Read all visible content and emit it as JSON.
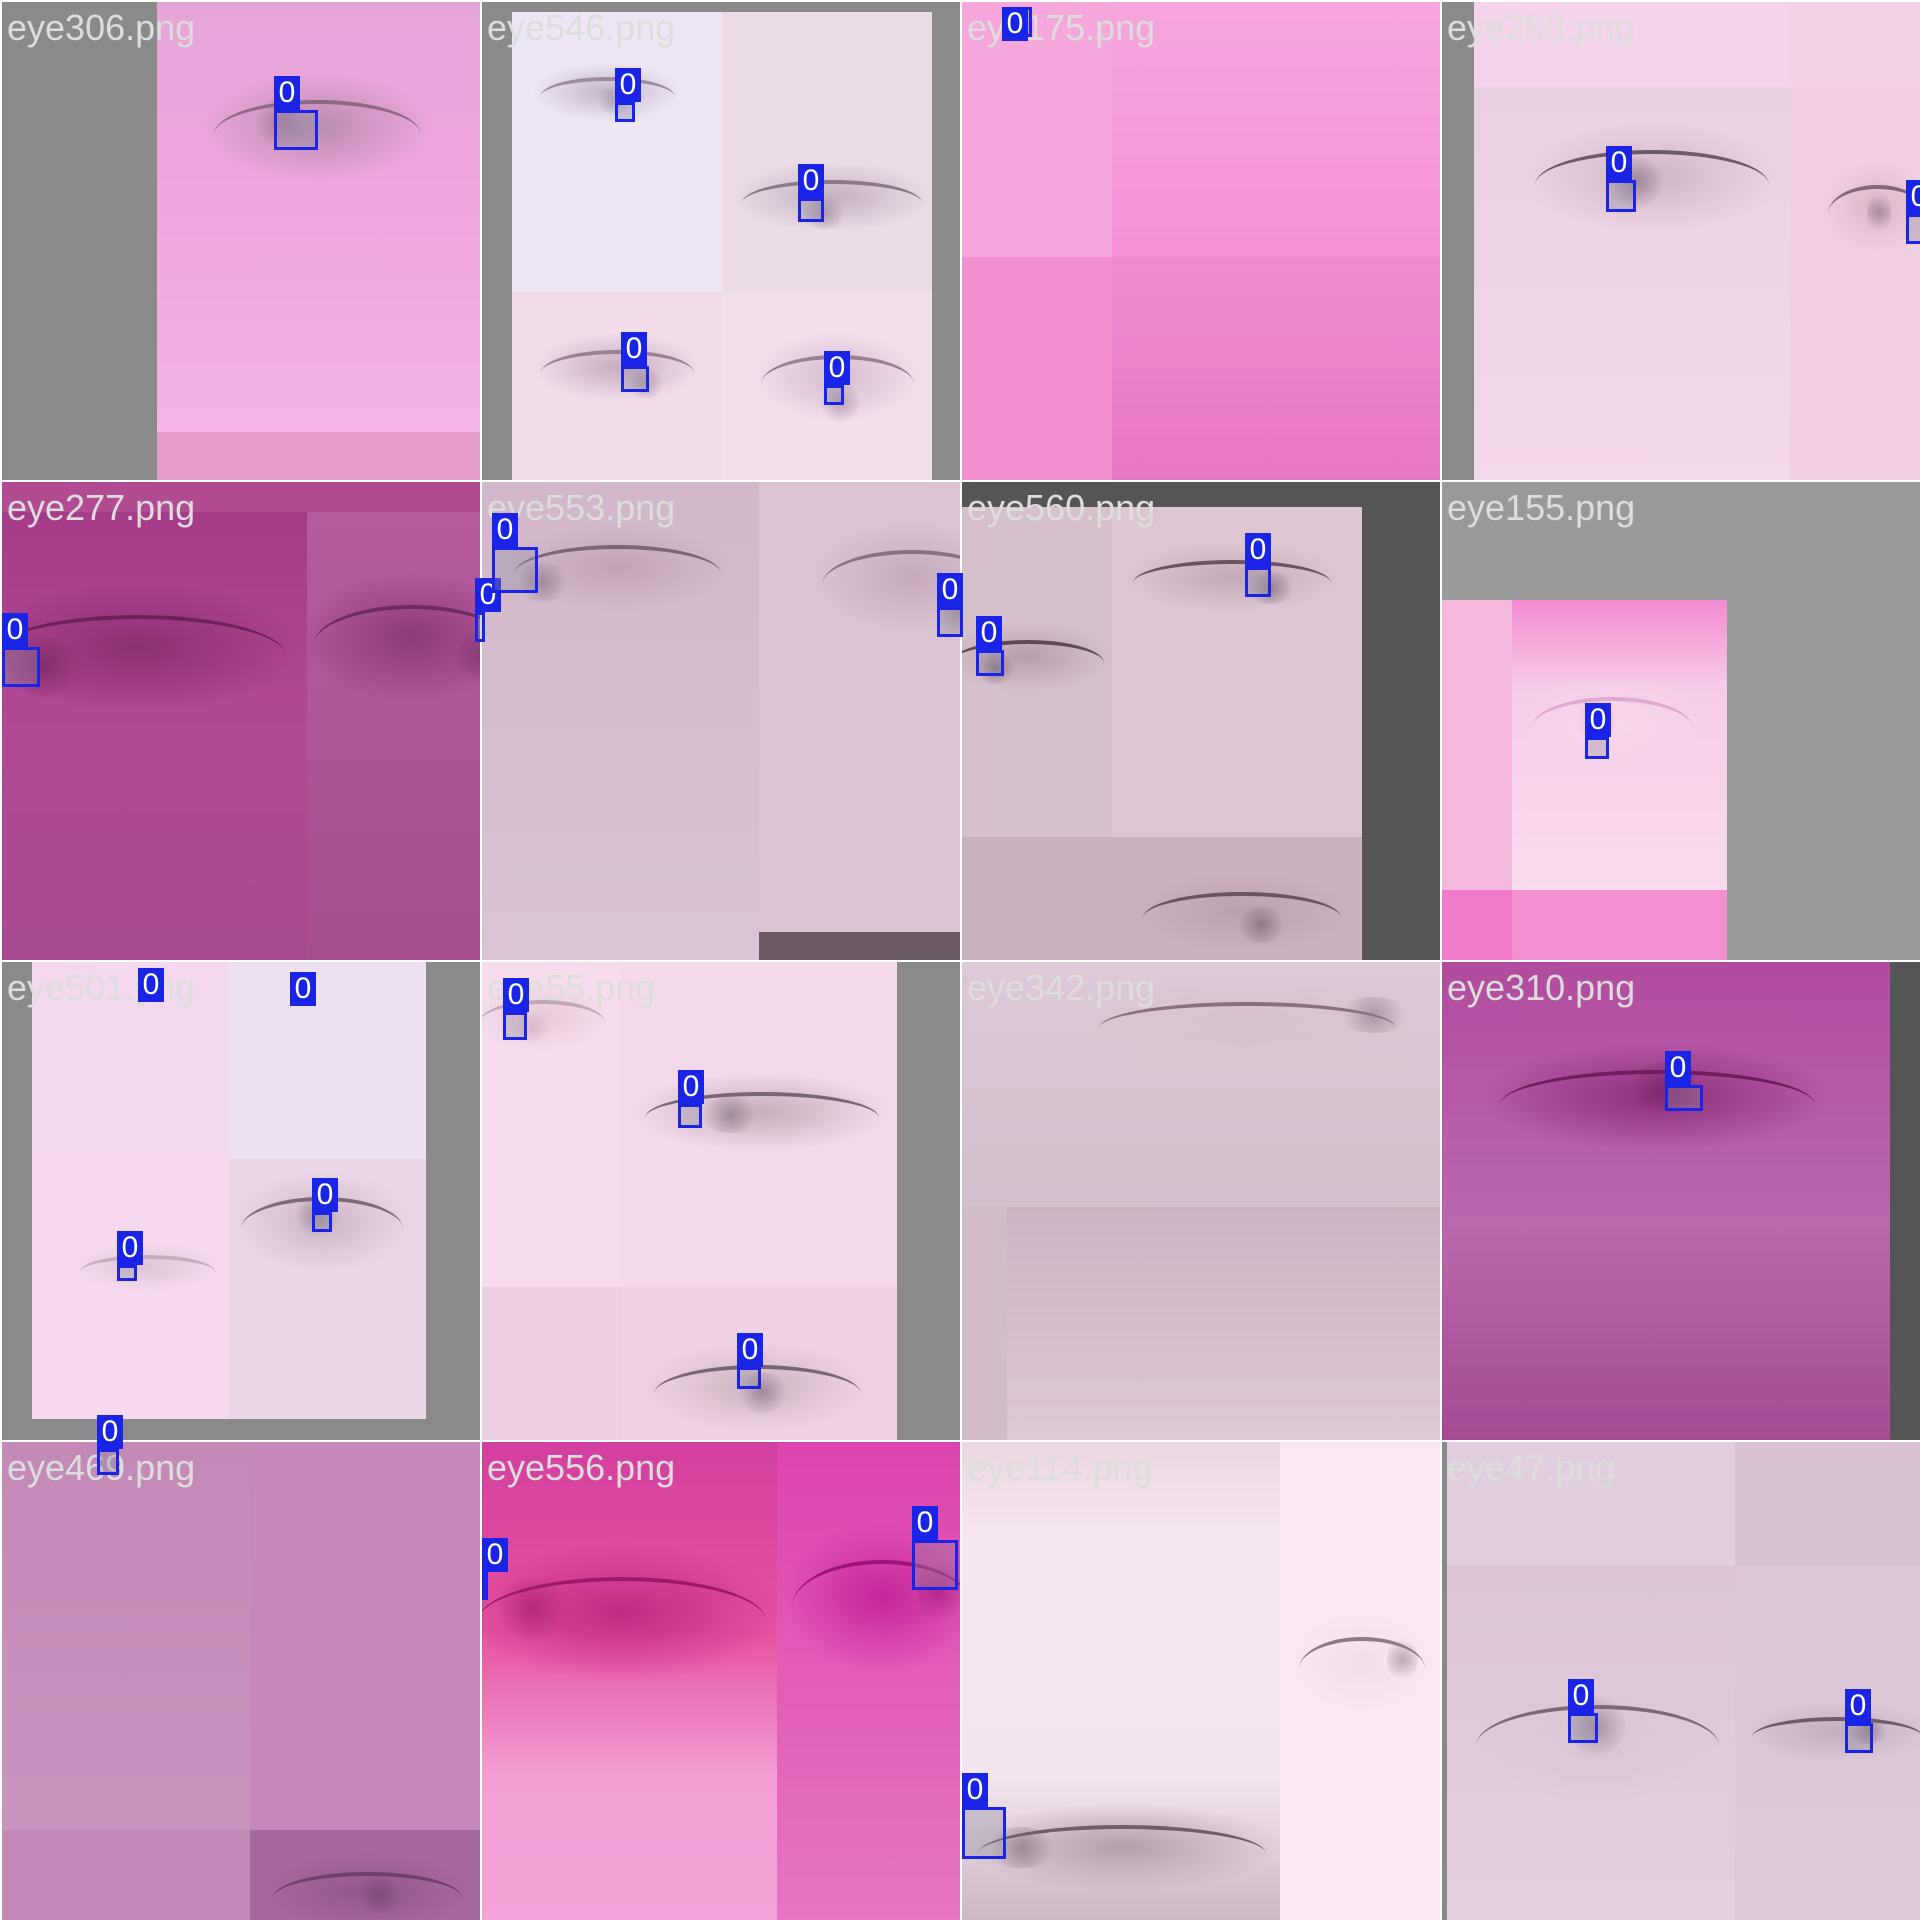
{
  "colors": {
    "separator": "#ffffff",
    "label_text": "#dddddd",
    "detection_box": "#1a24e6",
    "detection_tag_text": "#ffffff",
    "padding_gray": "#888888"
  },
  "tiles": [
    {
      "label": "eye306.png",
      "detections": [
        {
          "tag": "0"
        }
      ]
    },
    {
      "label": "eye546.png",
      "detections": [
        {
          "tag": "0"
        },
        {
          "tag": "0"
        },
        {
          "tag": "0"
        },
        {
          "tag": "0"
        }
      ]
    },
    {
      "label": "eye175.png",
      "detections": [
        {
          "tag": "0"
        }
      ]
    },
    {
      "label": "eye288.png",
      "detections": [
        {
          "tag": "0"
        },
        {
          "tag": "0"
        }
      ]
    },
    {
      "label": "eye277.png",
      "detections": [
        {
          "tag": "0"
        },
        {
          "tag": "0"
        }
      ]
    },
    {
      "label": "eye553.png",
      "detections": [
        {
          "tag": "0"
        },
        {
          "tag": "0"
        }
      ]
    },
    {
      "label": "eye560.png",
      "detections": [
        {
          "tag": "0"
        },
        {
          "tag": "0"
        },
        {
          "tag": "0"
        }
      ]
    },
    {
      "label": "eye155.png",
      "detections": [
        {
          "tag": "0"
        }
      ]
    },
    {
      "label": "eye501.png",
      "detections": [
        {
          "tag": "0"
        },
        {
          "tag": "0"
        },
        {
          "tag": "0"
        },
        {
          "tag": "0"
        },
        {
          "tag": "0"
        }
      ]
    },
    {
      "label": "eye55.png",
      "detections": [
        {
          "tag": "0"
        },
        {
          "tag": "0"
        },
        {
          "tag": "0"
        }
      ]
    },
    {
      "label": "eye342.png",
      "detections": []
    },
    {
      "label": "eye310.png",
      "detections": [
        {
          "tag": "0"
        }
      ]
    },
    {
      "label": "eye469.png",
      "detections": []
    },
    {
      "label": "eye556.png",
      "detections": [
        {
          "tag": "0"
        },
        {
          "tag": "0"
        }
      ]
    },
    {
      "label": "eye114.png",
      "detections": [
        {
          "tag": "0"
        }
      ]
    },
    {
      "label": "eye47.png",
      "detections": [
        {
          "tag": "0"
        },
        {
          "tag": "0"
        }
      ]
    }
  ]
}
